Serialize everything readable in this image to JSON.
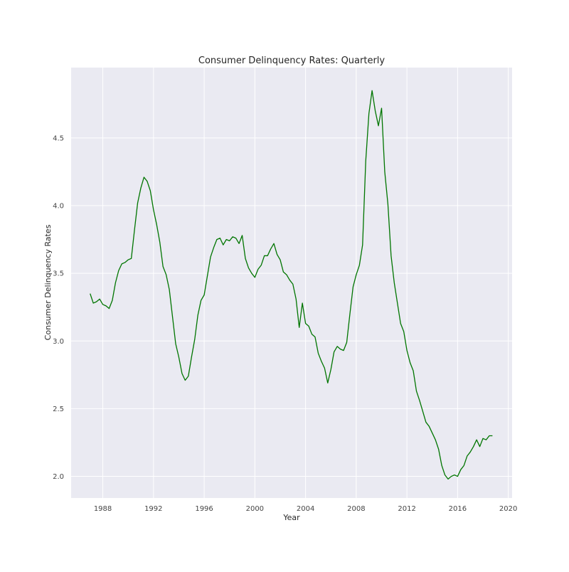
{
  "chart_data": {
    "type": "line",
    "title": "Consumer Delinquency Rates: Quarterly",
    "xlabel": "Year",
    "ylabel": "Consumer Delinquency Rates",
    "xlim": [
      1985.5,
      2020.3
    ],
    "ylim": [
      1.84,
      5.02
    ],
    "x_ticks": [
      1988,
      1992,
      1996,
      2000,
      2004,
      2008,
      2012,
      2016,
      2020
    ],
    "x_tick_labels": [
      "1988",
      "1992",
      "1996",
      "2000",
      "2004",
      "2008",
      "2012",
      "2016",
      "2020"
    ],
    "y_ticks": [
      2.0,
      2.5,
      3.0,
      3.5,
      4.0,
      4.5
    ],
    "y_tick_labels": [
      "2.0",
      "2.5",
      "3.0",
      "3.5",
      "4.0",
      "4.5"
    ],
    "grid": true,
    "line_color": "#007500",
    "background_color": "#eaeaf2",
    "series": [
      {
        "x": [
          1987.0,
          1987.25,
          1987.5,
          1987.75,
          1988.0,
          1988.25,
          1988.5,
          1988.75,
          1989.0,
          1989.25,
          1989.5,
          1989.75,
          1990.0,
          1990.25,
          1990.5,
          1990.75,
          1991.0,
          1991.25,
          1991.5,
          1991.75,
          1992.0,
          1992.25,
          1992.5,
          1992.75,
          1993.0,
          1993.25,
          1993.5,
          1993.75,
          1994.0,
          1994.25,
          1994.5,
          1994.75,
          1995.0,
          1995.25,
          1995.5,
          1995.75,
          1996.0,
          1996.25,
          1996.5,
          1996.75,
          1997.0,
          1997.25,
          1997.5,
          1997.75,
          1998.0,
          1998.25,
          1998.5,
          1998.75,
          1999.0,
          1999.25,
          1999.5,
          1999.75,
          2000.0,
          2000.25,
          2000.5,
          2000.75,
          2001.0,
          2001.25,
          2001.5,
          2001.75,
          2002.0,
          2002.25,
          2002.5,
          2002.75,
          2003.0,
          2003.25,
          2003.5,
          2003.75,
          2004.0,
          2004.25,
          2004.5,
          2004.75,
          2005.0,
          2005.25,
          2005.5,
          2005.75,
          2006.0,
          2006.25,
          2006.5,
          2006.75,
          2007.0,
          2007.25,
          2007.5,
          2007.75,
          2008.0,
          2008.25,
          2008.5,
          2008.75,
          2009.0,
          2009.25,
          2009.5,
          2009.75,
          2010.0,
          2010.25,
          2010.5,
          2010.75,
          2011.0,
          2011.25,
          2011.5,
          2011.75,
          2012.0,
          2012.25,
          2012.5,
          2012.75,
          2013.0,
          2013.25,
          2013.5,
          2013.75,
          2014.0,
          2014.25,
          2014.5,
          2014.75,
          2015.0,
          2015.25,
          2015.5,
          2015.75,
          2016.0,
          2016.25,
          2016.5,
          2016.75,
          2017.0,
          2017.25,
          2017.5,
          2017.75,
          2018.0,
          2018.25,
          2018.5,
          2018.75
        ],
        "values": [
          3.35,
          3.28,
          3.29,
          3.31,
          3.27,
          3.26,
          3.24,
          3.3,
          3.43,
          3.52,
          3.57,
          3.58,
          3.6,
          3.61,
          3.82,
          4.02,
          4.13,
          4.21,
          4.18,
          4.11,
          3.97,
          3.86,
          3.73,
          3.55,
          3.49,
          3.38,
          3.18,
          2.98,
          2.88,
          2.76,
          2.71,
          2.74,
          2.88,
          3.01,
          3.19,
          3.3,
          3.34,
          3.48,
          3.62,
          3.69,
          3.75,
          3.76,
          3.71,
          3.75,
          3.74,
          3.77,
          3.76,
          3.72,
          3.78,
          3.61,
          3.54,
          3.5,
          3.47,
          3.53,
          3.56,
          3.63,
          3.63,
          3.68,
          3.72,
          3.64,
          3.6,
          3.51,
          3.49,
          3.45,
          3.42,
          3.31,
          3.1,
          3.28,
          3.13,
          3.11,
          3.05,
          3.03,
          2.91,
          2.85,
          2.8,
          2.69,
          2.79,
          2.92,
          2.96,
          2.94,
          2.93,
          2.99,
          3.2,
          3.4,
          3.49,
          3.56,
          3.71,
          4.33,
          4.68,
          4.85,
          4.7,
          4.59,
          4.72,
          4.25,
          4.01,
          3.63,
          3.43,
          3.28,
          3.13,
          3.07,
          2.93,
          2.84,
          2.78,
          2.63,
          2.56,
          2.48,
          2.4,
          2.37,
          2.32,
          2.27,
          2.2,
          2.08,
          2.01,
          1.98,
          2.0,
          2.01,
          2.0,
          2.05,
          2.08,
          2.15,
          2.18,
          2.22,
          2.27,
          2.22,
          2.28,
          2.27,
          2.3,
          2.3
        ]
      }
    ]
  }
}
